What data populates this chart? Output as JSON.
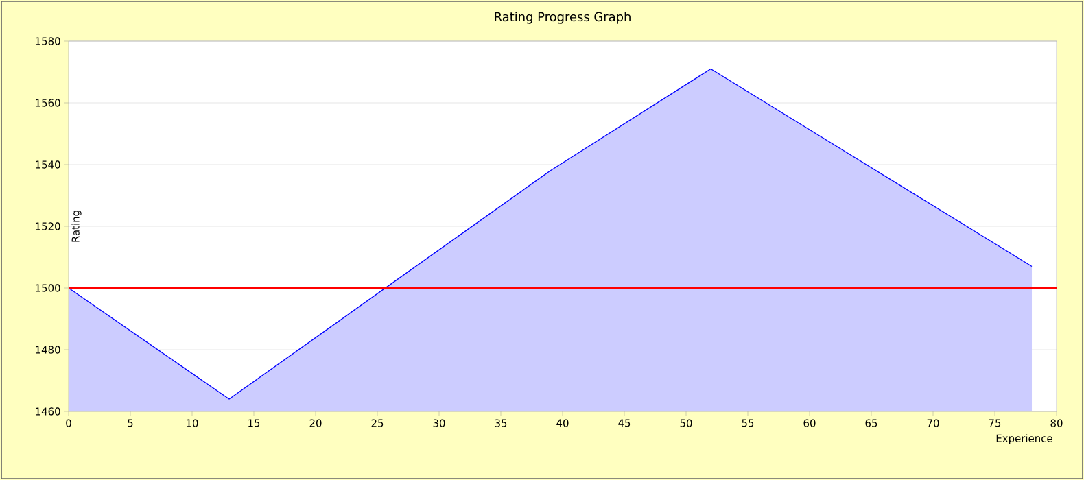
{
  "chart_data": {
    "type": "area",
    "title": "Rating Progress Graph",
    "xlabel": "Experience",
    "ylabel": "Rating",
    "x": [
      0,
      13,
      39,
      52,
      78
    ],
    "series": [
      {
        "color": "#0000ff",
        "values": [
          1500,
          1464,
          1538,
          1571,
          1507
        ]
      }
    ],
    "xlim": [
      0,
      80
    ],
    "xticks": [
      0,
      5,
      10,
      15,
      20,
      25,
      30,
      35,
      40,
      45,
      50,
      55,
      60,
      65,
      70,
      75,
      80
    ],
    "ylim": [
      1460,
      1580
    ],
    "yticks": [
      1460,
      1480,
      1500,
      1520,
      1540,
      1560,
      1580
    ],
    "grid": "y",
    "ref_lines": [
      {
        "axis": "y",
        "value": 1500,
        "color": "#ff0000"
      }
    ]
  }
}
